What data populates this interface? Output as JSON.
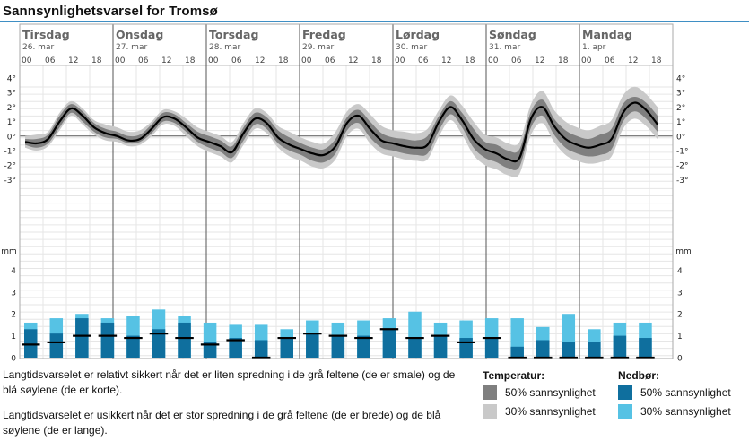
{
  "title": "Sannsynlighetsvarsel for Tromsø",
  "chart_data": {
    "type": "band-line-and-bar",
    "days": [
      {
        "name": "Tirsdag",
        "date": "26. mar"
      },
      {
        "name": "Onsdag",
        "date": "27. mar"
      },
      {
        "name": "Torsdag",
        "date": "28. mar"
      },
      {
        "name": "Fredag",
        "date": "29. mar"
      },
      {
        "name": "Lørdag",
        "date": "30. mar"
      },
      {
        "name": "Søndag",
        "date": "31. mar"
      },
      {
        "name": "Mandag",
        "date": "1. apr"
      }
    ],
    "hour_labels": [
      "00",
      "06",
      "12",
      "18"
    ],
    "temperature": {
      "unit_ticks": [
        "4°",
        "3°",
        "2°",
        "1°",
        "0°",
        "-1°",
        "-2°",
        "-3°"
      ],
      "ylim": [
        -3,
        4
      ],
      "median": [
        -0.4,
        -0.5,
        -0.2,
        1.0,
        1.9,
        1.4,
        0.6,
        0.2,
        0.0,
        -0.3,
        -0.2,
        0.5,
        1.3,
        1.2,
        0.6,
        -0.1,
        -0.4,
        -0.7,
        -1.1,
        0.2,
        1.2,
        0.9,
        -0.1,
        -0.6,
        -0.9,
        -1.2,
        -1.3,
        -0.7,
        0.9,
        1.4,
        0.5,
        -0.3,
        -0.5,
        -0.7,
        -0.8,
        -0.6,
        1.0,
        2.0,
        1.1,
        -0.2,
        -0.9,
        -1.2,
        -1.6,
        -1.5,
        1.2,
        2.0,
        0.7,
        -0.2,
        -0.6,
        -0.8,
        -0.6,
        -0.2,
        1.6,
        2.3,
        1.8,
        0.8
      ],
      "band50": [
        [
          -0.6,
          -0.2
        ],
        [
          -0.8,
          -0.2
        ],
        [
          -0.5,
          0.1
        ],
        [
          0.6,
          1.4
        ],
        [
          1.6,
          2.2
        ],
        [
          1.0,
          1.7
        ],
        [
          0.3,
          0.9
        ],
        [
          -0.1,
          0.5
        ],
        [
          -0.2,
          0.3
        ],
        [
          -0.5,
          0.0
        ],
        [
          -0.4,
          0.1
        ],
        [
          0.2,
          0.8
        ],
        [
          1.0,
          1.6
        ],
        [
          0.9,
          1.5
        ],
        [
          0.3,
          0.9
        ],
        [
          -0.4,
          0.3
        ],
        [
          -0.8,
          0.0
        ],
        [
          -1.1,
          -0.3
        ],
        [
          -1.5,
          -0.7
        ],
        [
          -0.3,
          0.6
        ],
        [
          0.8,
          1.6
        ],
        [
          0.5,
          1.3
        ],
        [
          -0.5,
          0.4
        ],
        [
          -1.0,
          -0.1
        ],
        [
          -1.3,
          -0.5
        ],
        [
          -1.7,
          -0.8
        ],
        [
          -1.8,
          -0.9
        ],
        [
          -1.2,
          -0.2
        ],
        [
          0.4,
          1.3
        ],
        [
          0.9,
          1.8
        ],
        [
          -0.1,
          1.0
        ],
        [
          -0.8,
          0.2
        ],
        [
          -1.0,
          -0.1
        ],
        [
          -1.2,
          -0.2
        ],
        [
          -1.3,
          -0.3
        ],
        [
          -1.2,
          0.0
        ],
        [
          0.4,
          1.4
        ],
        [
          1.5,
          2.4
        ],
        [
          0.6,
          1.6
        ],
        [
          -0.8,
          0.5
        ],
        [
          -1.5,
          -0.4
        ],
        [
          -1.8,
          -0.6
        ],
        [
          -2.2,
          -1.0
        ],
        [
          -2.1,
          -0.9
        ],
        [
          0.6,
          1.7
        ],
        [
          1.4,
          2.5
        ],
        [
          0.1,
          1.2
        ],
        [
          -0.8,
          0.4
        ],
        [
          -1.2,
          0.0
        ],
        [
          -1.4,
          -0.2
        ],
        [
          -1.3,
          0.1
        ],
        [
          -0.9,
          0.5
        ],
        [
          1.0,
          2.2
        ],
        [
          1.7,
          2.7
        ],
        [
          1.2,
          2.3
        ],
        [
          0.3,
          1.4
        ]
      ],
      "band30": [
        [
          -0.8,
          0.0
        ],
        [
          -1.0,
          0.1
        ],
        [
          -0.7,
          0.3
        ],
        [
          0.4,
          1.6
        ],
        [
          1.4,
          2.4
        ],
        [
          0.8,
          1.9
        ],
        [
          0.1,
          1.1
        ],
        [
          -0.3,
          0.8
        ],
        [
          -0.4,
          0.6
        ],
        [
          -0.7,
          0.3
        ],
        [
          -0.6,
          0.4
        ],
        [
          0.0,
          1.0
        ],
        [
          0.8,
          1.8
        ],
        [
          0.7,
          1.7
        ],
        [
          0.0,
          1.2
        ],
        [
          -0.7,
          0.6
        ],
        [
          -1.1,
          0.3
        ],
        [
          -1.4,
          0.0
        ],
        [
          -1.8,
          -0.4
        ],
        [
          -0.6,
          0.9
        ],
        [
          0.5,
          1.9
        ],
        [
          0.2,
          1.6
        ],
        [
          -0.8,
          0.7
        ],
        [
          -1.4,
          0.3
        ],
        [
          -1.7,
          -0.1
        ],
        [
          -2.1,
          -0.4
        ],
        [
          -2.2,
          -0.5
        ],
        [
          -1.6,
          0.3
        ],
        [
          0.0,
          1.7
        ],
        [
          0.5,
          2.2
        ],
        [
          -0.5,
          1.5
        ],
        [
          -1.2,
          0.7
        ],
        [
          -1.4,
          0.4
        ],
        [
          -1.6,
          0.3
        ],
        [
          -1.7,
          0.2
        ],
        [
          -1.6,
          0.5
        ],
        [
          0.0,
          1.8
        ],
        [
          1.1,
          2.8
        ],
        [
          0.1,
          2.1
        ],
        [
          -1.3,
          1.0
        ],
        [
          -2.0,
          0.1
        ],
        [
          -2.3,
          -0.1
        ],
        [
          -2.7,
          -0.5
        ],
        [
          -2.6,
          -0.4
        ],
        [
          0.1,
          2.2
        ],
        [
          0.9,
          3.1
        ],
        [
          -0.4,
          1.8
        ],
        [
          -1.3,
          1.0
        ],
        [
          -1.7,
          0.6
        ],
        [
          -1.9,
          0.4
        ],
        [
          -1.8,
          0.7
        ],
        [
          -1.4,
          1.1
        ],
        [
          0.5,
          2.8
        ],
        [
          1.2,
          3.4
        ],
        [
          0.7,
          2.9
        ],
        [
          -0.2,
          2.0
        ]
      ]
    },
    "precipitation": {
      "unit": "mm",
      "ticks": [
        "4",
        "3",
        "2",
        "1",
        "0"
      ],
      "ylim": [
        0,
        4
      ],
      "bar50": [
        1.3,
        1.1,
        1.8,
        1.6,
        1.0,
        1.3,
        1.6,
        0.7,
        0.9,
        0.8,
        0.9,
        1.1,
        1.0,
        1.0,
        1.3,
        0.9,
        1.0,
        0.9,
        0.9,
        0.5,
        0.8,
        0.7,
        0.7,
        1.0,
        0.9
      ],
      "bar30": [
        1.6,
        1.8,
        2.0,
        1.8,
        1.9,
        2.2,
        1.9,
        1.6,
        1.5,
        1.5,
        1.3,
        1.7,
        1.6,
        1.7,
        1.8,
        2.1,
        1.6,
        1.7,
        1.8,
        1.8,
        1.4,
        2.0,
        1.3,
        1.6,
        1.6
      ],
      "median": [
        0.6,
        0.7,
        1.0,
        1.0,
        0.9,
        1.1,
        0.9,
        0.6,
        0.8,
        0.0,
        0.9,
        1.1,
        1.0,
        0.9,
        1.3,
        0.9,
        1.0,
        0.7,
        0.9,
        0.0,
        0.0,
        0.0,
        0.0,
        0.0,
        0.0
      ]
    }
  },
  "description": {
    "line1": "Langtidsvarselet er relativt sikkert når det er liten spredning i de grå feltene (de er smale) og de blå søylene (de er korte).",
    "line2": "Langtidsvarselet er usikkert når det er stor spredning i de grå feltene (de er brede) og de blå søylene (de er lange)."
  },
  "legend": {
    "temperature_title": "Temperatur:",
    "precip_title": "Nedbør:",
    "p50": "50% sannsynlighet",
    "p30": "30% sannsynlighet"
  },
  "colors": {
    "band50": "#7f7f7f",
    "band30": "#c9c9c9",
    "bar50": "#0f6f9e",
    "bar30": "#56c2e4",
    "title_rule": "#3f8fc4"
  }
}
